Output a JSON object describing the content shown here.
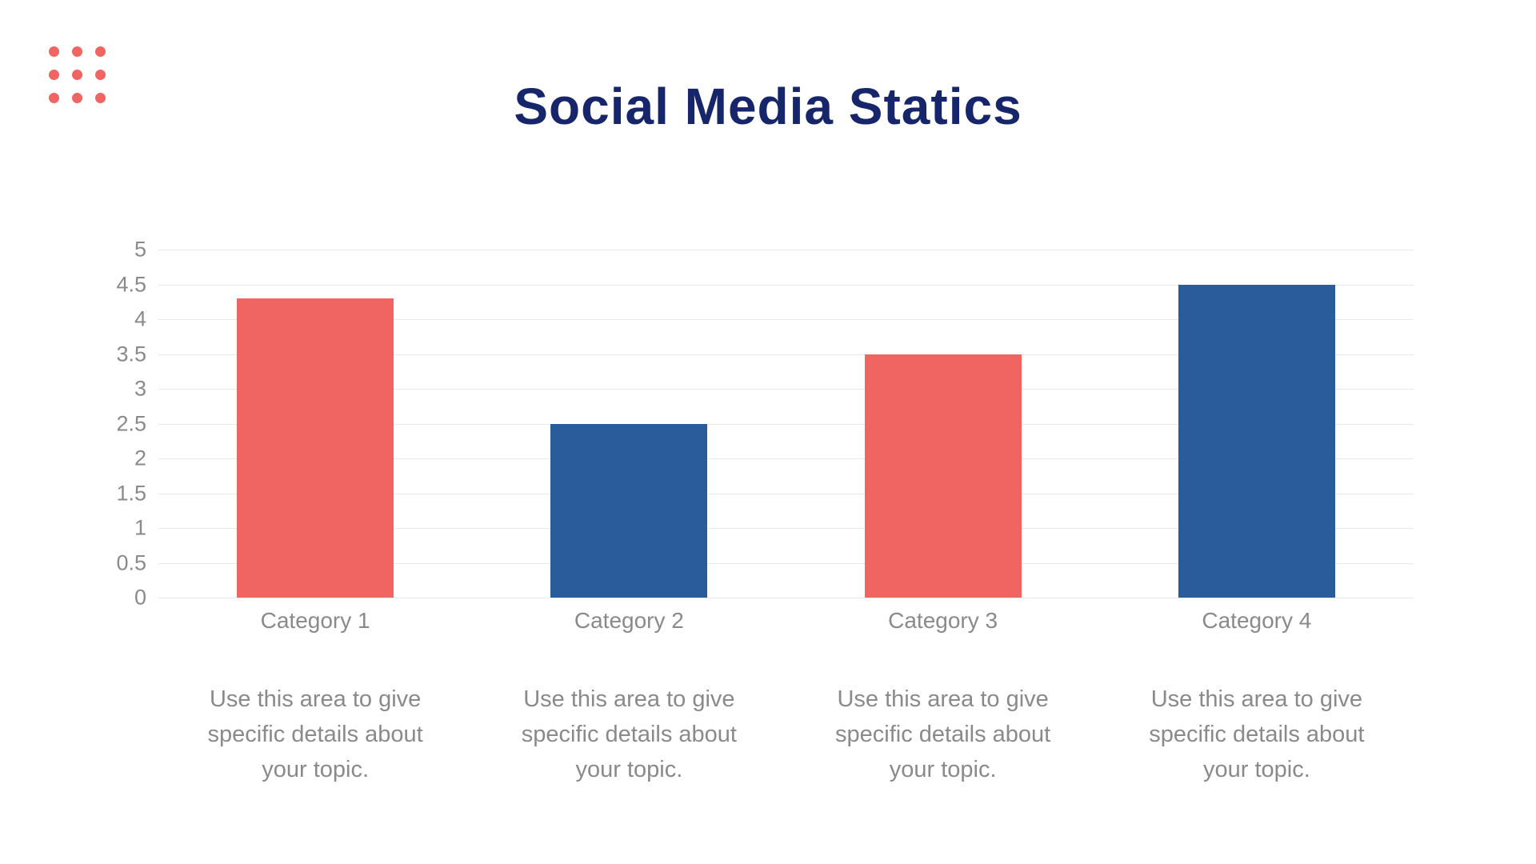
{
  "slide": {
    "title": "Social Media Statics"
  },
  "colors": {
    "background": "#FFFFFF",
    "title_navy": "#17266B",
    "coral": "#F06562",
    "blue": "#2A5B9B",
    "text_gray": "#8A8A8A",
    "gridline_gray": "#E9E9E9"
  },
  "decoration": {
    "dot_grid": {
      "rows": 3,
      "cols": 3,
      "color": "#F06562"
    }
  },
  "chart_data": {
    "type": "bar",
    "title": "Social Media Statics",
    "categories": [
      "Category 1",
      "Category 2",
      "Category 3",
      "Category 4"
    ],
    "values": [
      4.3,
      2.5,
      3.5,
      4.5
    ],
    "bar_colors": [
      "#F06562",
      "#2A5B9B",
      "#F06562",
      "#2A5B9B"
    ],
    "xlabel": "",
    "ylabel": "",
    "ylim": [
      0,
      5
    ],
    "yticks": [
      "0",
      "0.5",
      "1",
      "1.5",
      "2",
      "2.5",
      "3",
      "3.5",
      "4",
      "4.5",
      "5"
    ],
    "grid": "horizontal",
    "legend": "none"
  },
  "category_descriptions": [
    "Use this area to give specific details about your topic.",
    "Use this area to give specific details about your topic.",
    "Use this area to give specific details about your topic.",
    "Use this area to give specific details about your topic."
  ]
}
